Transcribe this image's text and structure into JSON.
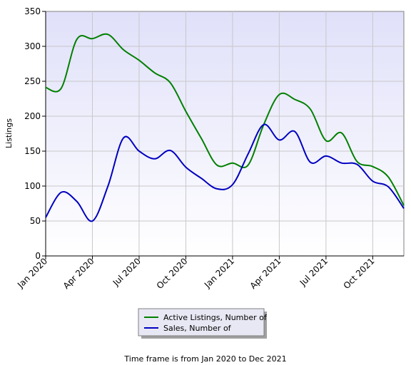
{
  "chart_data": {
    "type": "line",
    "ylabel": "Listings",
    "xlabel": "",
    "ylim": [
      0,
      350
    ],
    "yticks": [
      0,
      50,
      100,
      150,
      200,
      250,
      300,
      350
    ],
    "x": [
      "Jan 2020",
      "Feb 2020",
      "Mar 2020",
      "Apr 2020",
      "May 2020",
      "Jun 2020",
      "Jul 2020",
      "Aug 2020",
      "Sep 2020",
      "Oct 2020",
      "Nov 2020",
      "Dec 2020",
      "Jan 2021",
      "Feb 2021",
      "Mar 2021",
      "Apr 2021",
      "May 2021",
      "Jun 2021",
      "Jul 2021",
      "Aug 2021",
      "Sep 2021",
      "Oct 2021",
      "Nov 2021",
      "Dec 2021"
    ],
    "xtick_labels": [
      "Jan 2020",
      "Apr 2020",
      "Jul 2020",
      "Oct 2020",
      "Jan 2021",
      "Apr 2021",
      "Jul 2021",
      "Oct 2021"
    ],
    "grid": true,
    "legend_position": "bottom-center",
    "series": [
      {
        "name": "Active Listings, Number of",
        "color": "#008000",
        "values": [
          241,
          240,
          310,
          311,
          317,
          295,
          280,
          262,
          248,
          207,
          168,
          130,
          133,
          130,
          188,
          231,
          224,
          210,
          165,
          176,
          135,
          128,
          113,
          72
        ]
      },
      {
        "name": "Sales, Number of",
        "color": "#0000c0",
        "values": [
          55,
          91,
          78,
          50,
          100,
          169,
          150,
          139,
          151,
          127,
          111,
          96,
          102,
          146,
          188,
          166,
          178,
          134,
          143,
          133,
          131,
          107,
          99,
          68
        ]
      }
    ]
  },
  "caption": "Time frame is from Jan 2020 to Dec 2021"
}
